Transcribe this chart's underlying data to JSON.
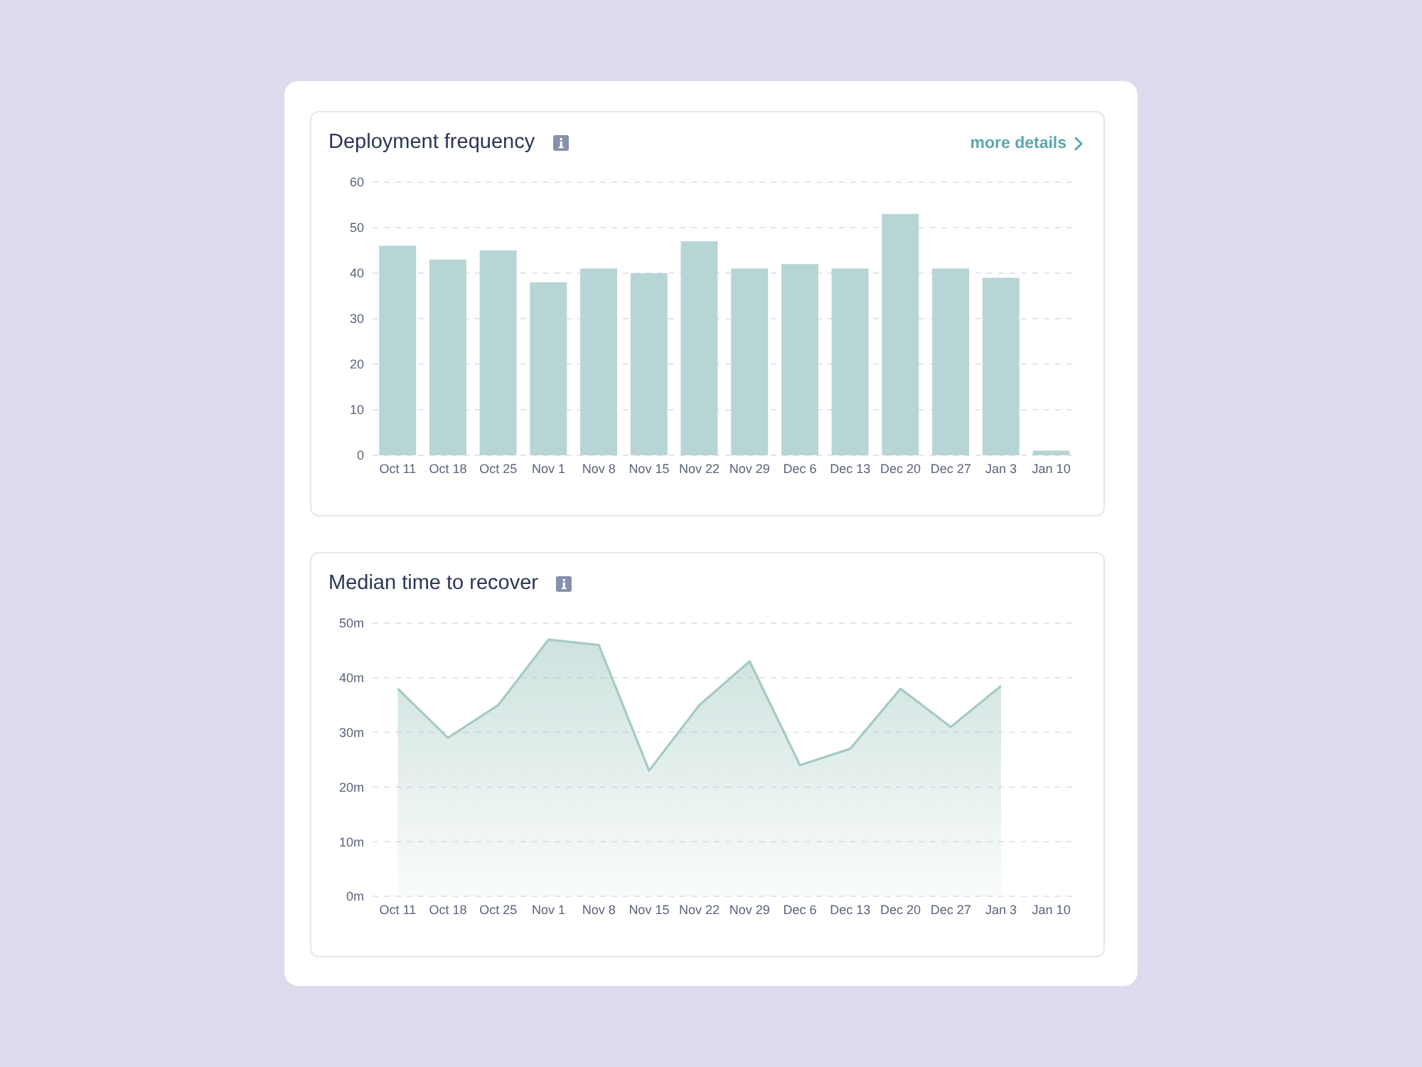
{
  "chart_data": [
    {
      "type": "bar",
      "title": "Deployment frequency",
      "categories": [
        "Oct 11",
        "Oct 18",
        "Oct 25",
        "Nov 1",
        "Nov 8",
        "Nov 15",
        "Nov 22",
        "Nov 29",
        "Dec 6",
        "Dec 13",
        "Dec 20",
        "Dec 27",
        "Jan 3",
        "Jan 10"
      ],
      "values": [
        46,
        43,
        45,
        38,
        41,
        40,
        47,
        41,
        42,
        41,
        53,
        41,
        39,
        1
      ],
      "color": "#b8d5d6",
      "ylim": [
        0,
        60
      ],
      "yticks": [
        0,
        10,
        20,
        30,
        40,
        50,
        60
      ],
      "grid": "y",
      "annotations": [
        "more details"
      ]
    },
    {
      "type": "area",
      "title": "Median time to recover",
      "categories": [
        "Oct 11",
        "Oct 18",
        "Oct 25",
        "Nov 1",
        "Nov 8",
        "Nov 15",
        "Nov 22",
        "Nov 29",
        "Dec 6",
        "Dec 13",
        "Dec 20",
        "Dec 27",
        "Jan 3",
        "Jan 10"
      ],
      "values": [
        38,
        29,
        35,
        47,
        46,
        23,
        35,
        43,
        24,
        27,
        38,
        31,
        38.5,
        null
      ],
      "color": "#a5cac3",
      "ylim": [
        0,
        50
      ],
      "yticks": [
        {
          "value": 0,
          "label": "0m"
        },
        {
          "value": 10,
          "label": "10m"
        },
        {
          "value": 20,
          "label": "20m"
        },
        {
          "value": 30,
          "label": "30m"
        },
        {
          "value": 40,
          "label": "40m"
        },
        {
          "value": 50,
          "label": "50m"
        }
      ],
      "grid": "y"
    }
  ]
}
